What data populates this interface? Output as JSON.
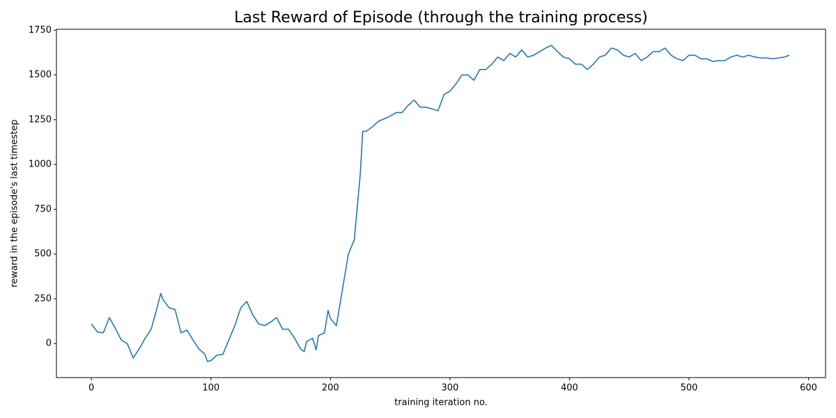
{
  "chart_data": {
    "type": "line",
    "title": "Last Reward of Episode (through the training process)",
    "xlabel": "training iteration no.",
    "ylabel": "reward in the episode's last timestep",
    "color": "#1f77b4",
    "x": [
      0,
      5,
      10,
      15,
      20,
      25,
      30,
      35,
      40,
      45,
      50,
      55,
      58,
      60,
      65,
      70,
      75,
      80,
      85,
      90,
      95,
      97,
      100,
      105,
      110,
      115,
      120,
      125,
      130,
      135,
      140,
      145,
      150,
      155,
      160,
      165,
      170,
      175,
      178,
      180,
      185,
      188,
      190,
      195,
      198,
      200,
      205,
      208,
      210,
      215,
      220,
      225,
      227,
      230,
      235,
      240,
      245,
      250,
      255,
      260,
      265,
      270,
      275,
      280,
      285,
      290,
      295,
      300,
      305,
      310,
      315,
      320,
      325,
      330,
      335,
      340,
      345,
      350,
      355,
      360,
      365,
      370,
      375,
      380,
      385,
      390,
      395,
      400,
      405,
      410,
      415,
      420,
      425,
      430,
      435,
      440,
      445,
      450,
      455,
      460,
      465,
      470,
      475,
      480,
      485,
      490,
      495,
      500,
      505,
      510,
      515,
      520,
      525,
      530,
      535,
      540,
      545,
      550,
      555,
      560,
      565,
      570,
      575,
      580,
      584
    ],
    "values": [
      110,
      65,
      60,
      145,
      85,
      20,
      0,
      -80,
      -30,
      30,
      80,
      200,
      280,
      245,
      200,
      190,
      60,
      75,
      20,
      -30,
      -60,
      -100,
      -95,
      -65,
      -60,
      20,
      100,
      200,
      235,
      160,
      110,
      100,
      120,
      145,
      80,
      80,
      30,
      -30,
      -45,
      10,
      30,
      -35,
      45,
      60,
      185,
      140,
      100,
      220,
      300,
      500,
      580,
      950,
      1185,
      1185,
      1210,
      1240,
      1255,
      1270,
      1290,
      1290,
      1330,
      1360,
      1320,
      1320,
      1310,
      1300,
      1390,
      1410,
      1450,
      1500,
      1500,
      1470,
      1530,
      1530,
      1560,
      1600,
      1580,
      1620,
      1600,
      1640,
      1600,
      1610,
      1630,
      1650,
      1665,
      1630,
      1600,
      1590,
      1560,
      1560,
      1530,
      1560,
      1600,
      1610,
      1650,
      1640,
      1610,
      1600,
      1620,
      1580,
      1600,
      1630,
      1630,
      1650,
      1610,
      1590,
      1580,
      1610,
      1610,
      1590,
      1590,
      1575,
      1580,
      1580,
      1600,
      1610,
      1600,
      1610,
      1600,
      1595,
      1595,
      1590,
      1595,
      1600,
      1610
    ],
    "xlim": [
      -29.25,
      614.25
    ],
    "ylim": [
      -190,
      1755
    ],
    "xticks": [
      0,
      100,
      200,
      300,
      400,
      500,
      600
    ],
    "yticks": [
      0,
      250,
      500,
      750,
      1000,
      1250,
      1500,
      1750
    ],
    "grid": false
  }
}
